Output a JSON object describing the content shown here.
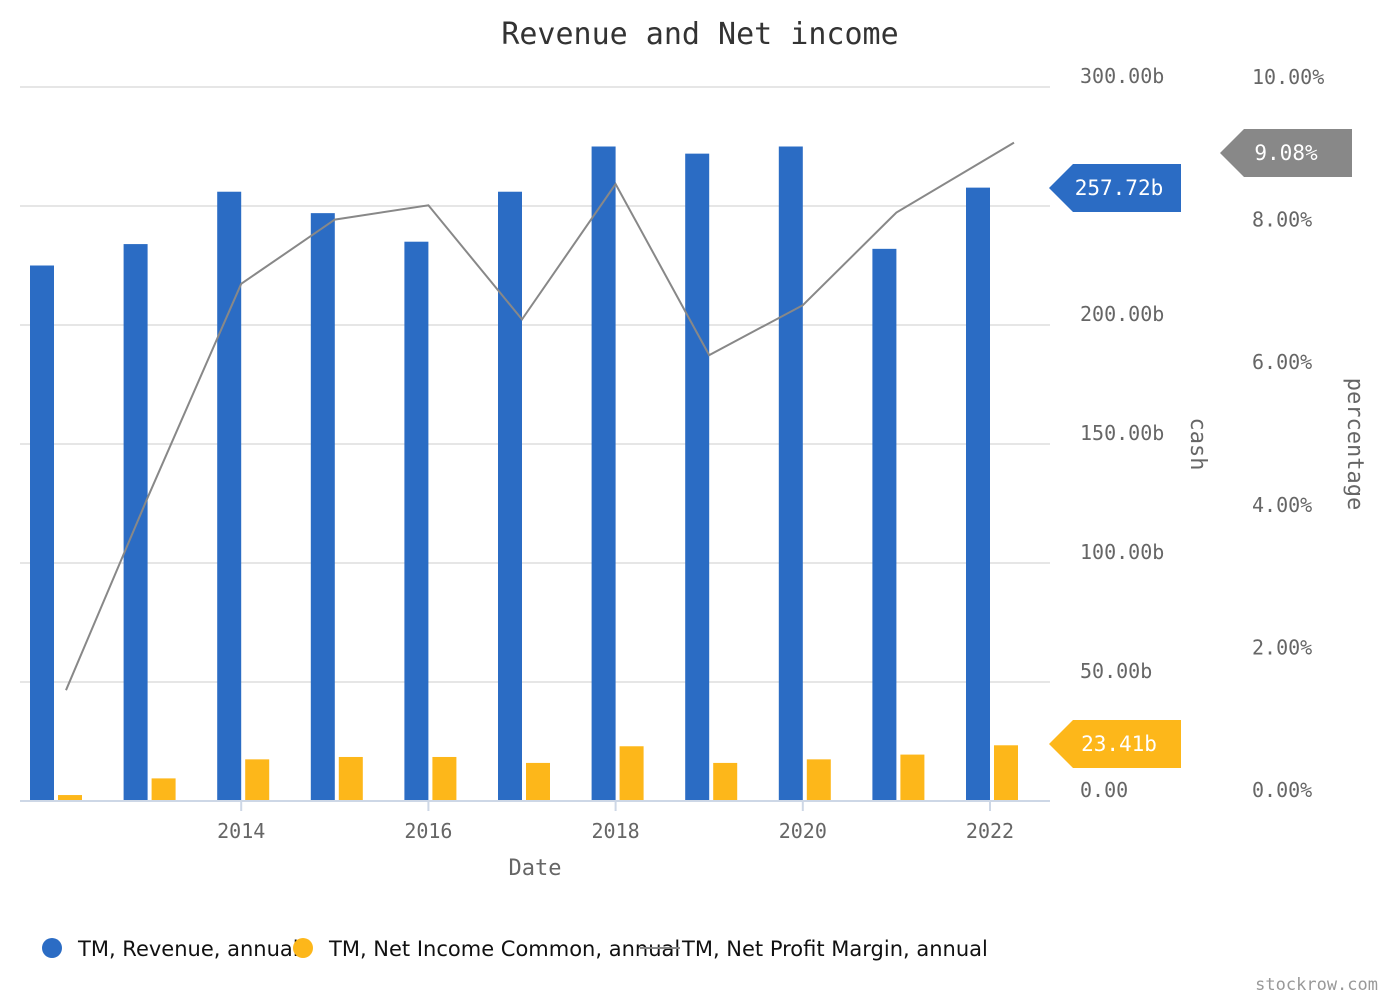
{
  "chart_data": {
    "type": "bar",
    "title": "Revenue and Net income",
    "xlabel": "Date",
    "x_ticks": [
      "2014",
      "2016",
      "2018",
      "2020",
      "2022"
    ],
    "years": [
      2012,
      2013,
      2014,
      2015,
      2016,
      2017,
      2018,
      2019,
      2020,
      2021,
      2022
    ],
    "y_left": {
      "label": "cash",
      "range": [
        0,
        300
      ],
      "ticks": [
        "300.00b",
        "200.00b",
        "150.00b",
        "100.00b",
        "50.00b",
        "0.00"
      ]
    },
    "y_right": {
      "label": "percentage",
      "range": [
        0,
        10
      ],
      "ticks": [
        "10.00%",
        "8.00%",
        "6.00%",
        "4.00%",
        "2.00%",
        "0.00%"
      ]
    },
    "series": [
      {
        "name": "TM, Revenue, annual",
        "type": "bar",
        "axis": "left",
        "color": "#2b6cc4",
        "values": [
          225,
          234,
          256,
          247,
          235,
          256,
          275,
          272,
          275,
          232,
          257.72
        ]
      },
      {
        "name": "TM, Net Income Common, annual",
        "type": "bar",
        "axis": "left",
        "color": "#fdb71a",
        "values": [
          2.5,
          9.5,
          17.5,
          18.5,
          18.5,
          16,
          23,
          16,
          17.5,
          19.5,
          23.41
        ]
      },
      {
        "name": "TM, Net Profit Margin, annual",
        "type": "line",
        "axis": "right",
        "color": "#888888",
        "values": [
          1.4,
          4.1,
          7.1,
          8.0,
          8.2,
          6.6,
          8.5,
          6.1,
          6.8,
          8.1,
          9.08
        ]
      }
    ],
    "last_value_flags": {
      "revenue": "257.72b",
      "net_income": "23.41b",
      "margin": "9.08%"
    },
    "legend_position": "bottom-left",
    "grid": true
  },
  "credit": "stockrow.com"
}
